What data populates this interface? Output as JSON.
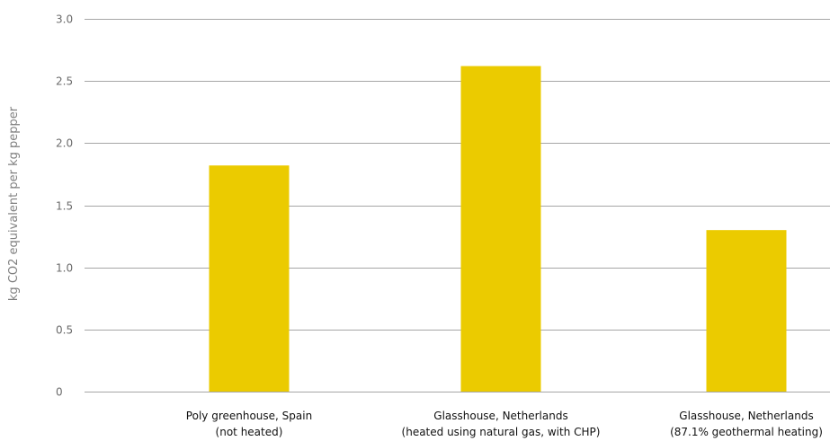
{
  "chart_data": {
    "type": "bar",
    "title": "",
    "xlabel": "",
    "ylabel": "kg CO2 equivalent per kg pepper",
    "ylim": [
      0,
      3.0
    ],
    "y_ticks": [
      "0",
      "0.5",
      "1.0",
      "1.5",
      "2.0",
      "2.5",
      "3.0"
    ],
    "grid": true,
    "legend": "none",
    "bar_color": "#EBCB00",
    "categories": [
      {
        "line1": "Poly greenhouse, Spain",
        "line2": "(not heated)"
      },
      {
        "line1": "Glasshouse, Netherlands",
        "line2": "(heated using natural gas, with CHP)"
      },
      {
        "line1": "Glasshouse, Netherlands",
        "line2": "(87.1% geothermal heating)"
      }
    ],
    "values": [
      1.82,
      2.62,
      1.3
    ]
  }
}
